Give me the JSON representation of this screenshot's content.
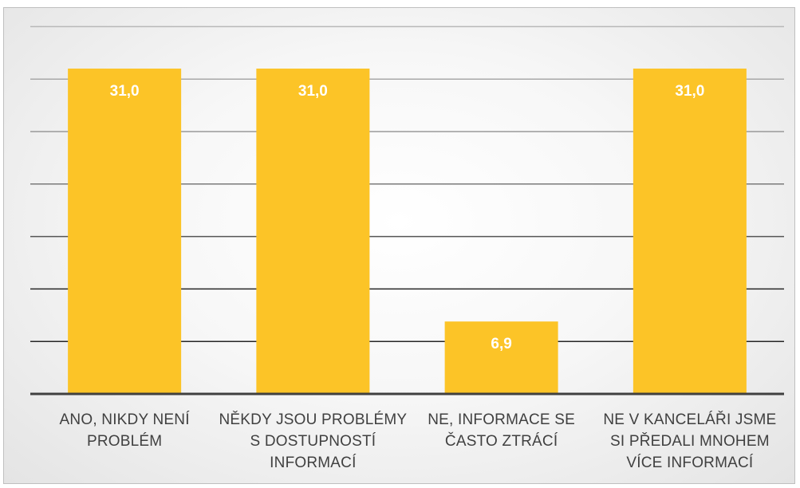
{
  "chart_data": {
    "type": "bar",
    "categories": [
      [
        "ANO, NIKDY NENÍ",
        "PROBLÉM"
      ],
      [
        "NĚKDY JSOU PROBLÉMY",
        "S DOSTUPNOSTÍ",
        "INFORMACÍ"
      ],
      [
        "NE, INFORMACE SE",
        "ČASTO ZTRÁCÍ"
      ],
      [
        "NE V KANCELÁŘI JSME",
        "SI PŘEDALI MNOHEM",
        "VÍCE INFORMACÍ"
      ]
    ],
    "values": [
      31.0,
      31.0,
      6.9,
      31.0
    ],
    "data_labels": [
      "31,0",
      "31,0",
      "6,9",
      "31,0"
    ],
    "ylim": [
      0,
      35
    ],
    "gridlines": [
      5,
      10,
      15,
      20,
      25,
      30,
      35
    ],
    "grid": true,
    "legend": "none",
    "title": "",
    "xlabel": "",
    "ylabel": "",
    "colors": {
      "bar": "#fcc427",
      "bar_label": "#ffffff",
      "axis": "#404040",
      "category_text": "#404040"
    }
  }
}
